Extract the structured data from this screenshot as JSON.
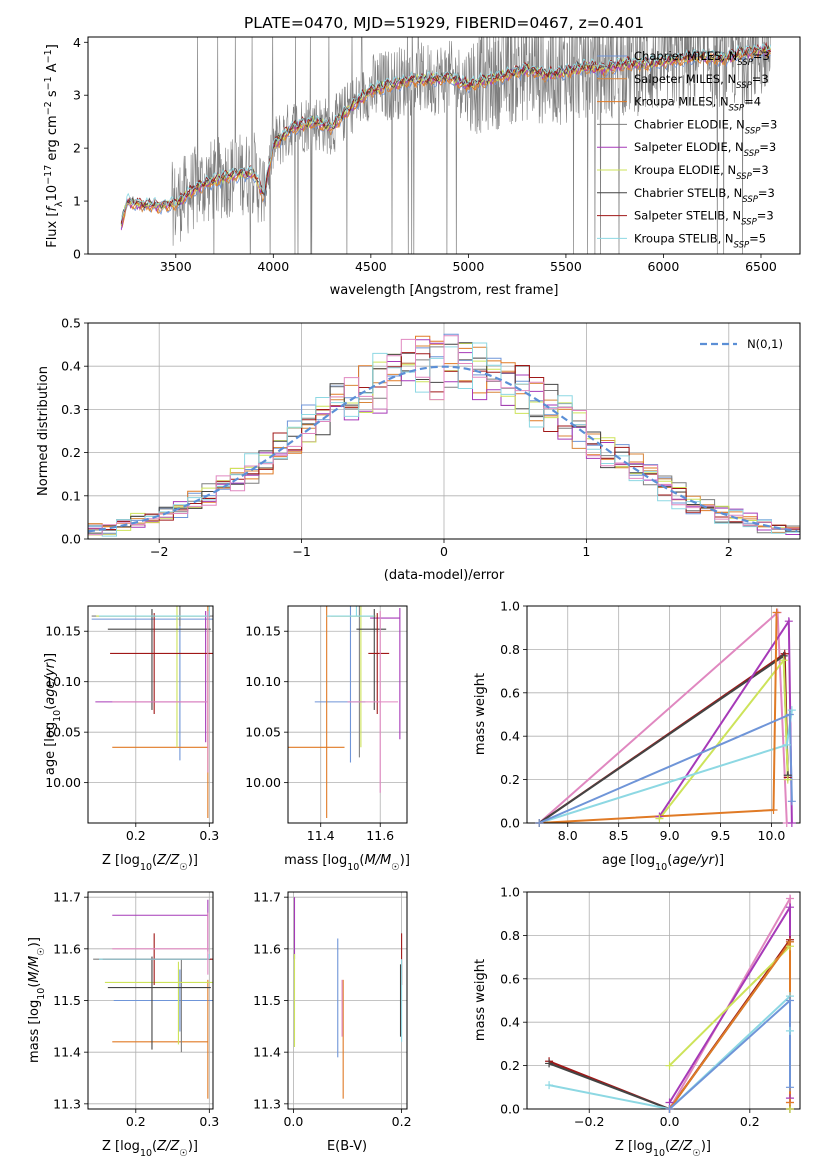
{
  "figure_title": "PLATE=0470, MJD=51929, FIBERID=0467, z=0.401",
  "colors": {
    "Chabrier MILES": "#6f95d8",
    "Salpeter MILES": "#d9863a",
    "Kroupa MILES": "#e07a25",
    "Chabrier ELODIE": "#7f7f7f",
    "Salpeter ELODIE": "#a63ab8",
    "Kroupa ELODIE": "#cde35a",
    "Chabrier STELIB": "#444444",
    "Salpeter STELIB": "#a01818",
    "Kroupa STELIB": "#8dd8e3",
    "normal": "#5b8fd6",
    "pink": "#e088c0"
  },
  "chart_data": [
    {
      "id": "spectrum",
      "type": "line",
      "title": "PLATE=0470, MJD=51929, FIBERID=0467, z=0.401",
      "xlabel": "wavelength [Angstrom, rest frame]",
      "ylabel": "Flux [f_λ 10^{-17} erg cm^{-2} s^{-1} A^{-1}]",
      "xlim": [
        3050,
        6700
      ],
      "ylim": [
        0,
        4.1
      ],
      "xticks": [
        3500,
        4000,
        4500,
        5000,
        5500,
        6000,
        6500
      ],
      "yticks": [
        0,
        1,
        2,
        3,
        4
      ],
      "grid": false,
      "legend_position": "upper-right",
      "model_continuum": {
        "x": [
          3220,
          3250,
          3300,
          3400,
          3500,
          3600,
          3700,
          3800,
          3900,
          3950,
          4000,
          4100,
          4200,
          4300,
          4400,
          4500,
          4600,
          4700,
          4800,
          4900,
          5000,
          5100,
          5200,
          5300,
          5400,
          5500,
          5600,
          5700,
          5800,
          5900,
          6000,
          6100,
          6200,
          6300,
          6400,
          6500,
          6550
        ],
        "y": [
          0.55,
          1.0,
          0.95,
          0.92,
          0.95,
          1.25,
          1.4,
          1.5,
          1.55,
          1.1,
          2.05,
          2.4,
          2.5,
          2.4,
          2.8,
          3.1,
          3.2,
          3.3,
          3.3,
          3.35,
          3.2,
          3.3,
          3.4,
          3.5,
          3.4,
          3.45,
          3.55,
          3.5,
          3.6,
          3.6,
          3.65,
          3.7,
          3.75,
          3.7,
          3.8,
          3.85,
          3.85
        ]
      },
      "series": [
        {
          "name": "Chabrier MILES, N_SSP=3",
          "label_main": "Chabrier MILES, N",
          "label_sub": "SSP",
          "label_end": "=3"
        },
        {
          "name": "Salpeter MILES, N_SSP=3",
          "label_main": "Salpeter MILES, N",
          "label_sub": "SSP",
          "label_end": "=3"
        },
        {
          "name": "Kroupa MILES, N_SSP=4",
          "label_main": "Kroupa MILES, N",
          "label_sub": "SSP",
          "label_end": "=4"
        },
        {
          "name": "Chabrier ELODIE, N_SSP=3",
          "label_main": "Chabrier ELODIE, N",
          "label_sub": "SSP",
          "label_end": "=3"
        },
        {
          "name": "Salpeter ELODIE, N_SSP=3",
          "label_main": "Salpeter ELODIE, N",
          "label_sub": "SSP",
          "label_end": "=3"
        },
        {
          "name": "Kroupa ELODIE, N_SSP=3",
          "label_main": "Kroupa ELODIE, N",
          "label_sub": "SSP",
          "label_end": "=3"
        },
        {
          "name": "Chabrier STELIB, N_SSP=3",
          "label_main": "Chabrier STELIB, N",
          "label_sub": "SSP",
          "label_end": "=3"
        },
        {
          "name": "Salpeter STELIB, N_SSP=3",
          "label_main": "Salpeter STELIB, N",
          "label_sub": "SSP",
          "label_end": "=3"
        },
        {
          "name": "Kroupa STELIB, N_SSP=5",
          "label_main": "Kroupa STELIB, N",
          "label_sub": "SSP",
          "label_end": "=5"
        }
      ]
    },
    {
      "id": "residuals",
      "type": "histogram",
      "xlabel": "(data-model)/error",
      "ylabel": "Normed distribution",
      "xlim": [
        -2.5,
        2.5
      ],
      "ylim": [
        0,
        0.5
      ],
      "xticks": [
        -2,
        -1,
        0,
        1,
        2
      ],
      "yticks": [
        0.0,
        0.1,
        0.2,
        0.3,
        0.4,
        0.5
      ],
      "grid": true,
      "legend_position": "upper-right",
      "legend_label": "N(0,1)",
      "bin_width": 0.1
    },
    {
      "id": "age_vs_Z",
      "type": "errorbar",
      "xlabel": "Z [log10(Z/Z☉)]",
      "ylabel": "age [log10(age/yr)]",
      "xlim": [
        0.135,
        0.305
      ],
      "ylim": [
        9.96,
        10.175
      ],
      "xticks": [
        0.2,
        0.3
      ],
      "yticks": [
        10.0,
        10.05,
        10.1,
        10.15
      ],
      "grid": true,
      "points": [
        {
          "model": "Chabrier MILES",
          "x": 0.26,
          "xerr": [
            0.12,
            0.05
          ],
          "y": 10.162,
          "yerr": [
            0.14,
            0.02
          ]
        },
        {
          "model": "Kroupa MILES",
          "x": 0.298,
          "xerr": [
            0.13,
            0.0
          ],
          "y": 10.035,
          "yerr": [
            0.07,
            0.14
          ]
        },
        {
          "model": "Chabrier ELODIE",
          "x": 0.26,
          "xerr": [
            0.12,
            0.05
          ],
          "y": 10.165,
          "yerr": [
            0.01,
            0.01
          ]
        },
        {
          "model": "Salpeter ELODIE",
          "x": 0.295,
          "xerr": [
            0.15,
            0.0
          ],
          "y": 10.08,
          "yerr": [
            0.04,
            0.09
          ]
        },
        {
          "model": "Kroupa ELODIE",
          "x": 0.256,
          "xerr": [
            0.11,
            0.04
          ],
          "y": 10.165,
          "yerr": [
            0.13,
            0.01
          ]
        },
        {
          "model": "Chabrier STELIB",
          "x": 0.222,
          "xerr": [
            0.06,
            0.08
          ],
          "y": 10.152,
          "yerr": [
            0.08,
            0.02
          ]
        },
        {
          "model": "Salpeter STELIB",
          "x": 0.225,
          "xerr": [
            0.06,
            0.08
          ],
          "y": 10.128,
          "yerr": [
            0.06,
            0.04
          ]
        },
        {
          "model": "Kroupa STELIB",
          "x": 0.3,
          "xerr": [
            0.15,
            0.0
          ],
          "y": 10.165,
          "yerr": [
            0.0,
            0.01
          ]
        },
        {
          "model": "pink",
          "x": 0.298,
          "xerr": [
            0.13,
            0.0
          ],
          "y": 10.08,
          "yerr": [
            0.07,
            0.09
          ]
        }
      ]
    },
    {
      "id": "age_vs_mass",
      "type": "errorbar",
      "xlabel": "mass [log10(M/M☉)]",
      "ylabel": "",
      "xlim": [
        11.29,
        11.69
      ],
      "ylim": [
        9.96,
        10.175
      ],
      "xticks": [
        11.4,
        11.6
      ],
      "yticks": [
        10.0,
        10.05,
        10.1,
        10.15
      ],
      "grid": true,
      "points": [
        {
          "model": "Chabrier MILES",
          "x": 11.5,
          "xerr": [
            0.12,
            0.05
          ],
          "y": 10.08,
          "yerr": [
            0.06,
            0.1
          ]
        },
        {
          "model": "Kroupa MILES",
          "x": 11.42,
          "xerr": [
            0.13,
            0.06
          ],
          "y": 10.035,
          "yerr": [
            0.07,
            0.14
          ]
        },
        {
          "model": "Chabrier ELODIE",
          "x": 11.53,
          "xerr": [
            0.11,
            0.05
          ],
          "y": 10.165,
          "yerr": [
            0.14,
            0.01
          ]
        },
        {
          "model": "Salpeter ELODIE",
          "x": 11.666,
          "xerr": [
            0.1,
            0.0
          ],
          "y": 10.163,
          "yerr": [
            0.12,
            0.01
          ]
        },
        {
          "model": "Kroupa ELODIE",
          "x": 11.535,
          "xerr": [
            0.1,
            0.05
          ],
          "y": 10.165,
          "yerr": [
            0.13,
            0.01
          ]
        },
        {
          "model": "Chabrier STELIB",
          "x": 11.58,
          "xerr": [
            0.06,
            0.04
          ],
          "y": 10.152,
          "yerr": [
            0.08,
            0.02
          ]
        },
        {
          "model": "Salpeter STELIB",
          "x": 11.59,
          "xerr": [
            0.03,
            0.04
          ],
          "y": 10.128,
          "yerr": [
            0.06,
            0.04
          ]
        },
        {
          "model": "Kroupa STELIB",
          "x": 11.52,
          "xerr": [
            0.1,
            0.06
          ],
          "y": 10.165,
          "yerr": [
            0.0,
            0.01
          ]
        },
        {
          "model": "pink",
          "x": 11.6,
          "xerr": [
            0.11,
            0.06
          ],
          "y": 10.08,
          "yerr": [
            0.09,
            0.09
          ]
        }
      ]
    },
    {
      "id": "weight_vs_age",
      "type": "line",
      "xlabel": "age [log10(age/yr)]",
      "ylabel": "mass weight",
      "xlim": [
        7.6,
        10.28
      ],
      "ylim": [
        0,
        1.0
      ],
      "xticks": [
        8.0,
        8.5,
        9.0,
        9.5,
        10.0
      ],
      "yticks": [
        0.0,
        0.2,
        0.4,
        0.6,
        0.8,
        1.0
      ],
      "grid": true,
      "series": [
        {
          "model": "pink",
          "x": [
            7.72,
            10.06,
            10.15
          ],
          "y": [
            0.0,
            0.97,
            0.0
          ]
        },
        {
          "model": "Salpeter STELIB",
          "x": [
            7.72,
            10.13,
            10.16
          ],
          "y": [
            0.0,
            0.78,
            0.21
          ]
        },
        {
          "model": "Chabrier STELIB",
          "x": [
            7.72,
            10.12,
            10.16
          ],
          "y": [
            0.0,
            0.77,
            0.22
          ]
        },
        {
          "model": "Salpeter ELODIE",
          "x": [
            8.9,
            10.17,
            10.2
          ],
          "y": [
            0.03,
            0.93,
            0.0
          ]
        },
        {
          "model": "Kroupa ELODIE",
          "x": [
            8.9,
            10.12,
            10.16
          ],
          "y": [
            0.02,
            0.75,
            0.2
          ]
        },
        {
          "model": "Kroupa STELIB",
          "x": [
            7.72,
            10.15,
            10.2
          ],
          "y": [
            0.0,
            0.36,
            0.52
          ]
        },
        {
          "model": "Kroupa MILES",
          "x": [
            7.72,
            10.02,
            10.05
          ],
          "y": [
            0.0,
            0.06,
            0.97
          ]
        },
        {
          "model": "Chabrier MILES",
          "x": [
            7.72,
            10.18,
            10.2
          ],
          "y": [
            0.0,
            0.5,
            0.1
          ]
        }
      ]
    },
    {
      "id": "mass_vs_Z",
      "type": "errorbar",
      "xlabel": "Z [log10(Z/Z☉)]",
      "ylabel": "mass [log10(M/M☉)]",
      "xlim": [
        0.135,
        0.305
      ],
      "ylim": [
        11.29,
        11.71
      ],
      "xticks": [
        0.2,
        0.3
      ],
      "yticks": [
        11.3,
        11.4,
        11.5,
        11.6,
        11.7
      ],
      "grid": true,
      "points": [
        {
          "model": "Chabrier MILES",
          "x": 0.26,
          "xerr": [
            0.09,
            0.05
          ],
          "y": 11.5,
          "yerr": [
            0.06,
            0.06
          ]
        },
        {
          "model": "Kroupa MILES",
          "x": 0.298,
          "xerr": [
            0.13,
            0.0
          ],
          "y": 11.42,
          "yerr": [
            0.11,
            0.12
          ]
        },
        {
          "model": "Chabrier ELODIE",
          "x": 0.262,
          "xerr": [
            0.12,
            0.04
          ],
          "y": 11.58,
          "yerr": [
            0.18,
            0.0
          ]
        },
        {
          "model": "Salpeter ELODIE",
          "x": 0.298,
          "xerr": [
            0.13,
            0.0
          ],
          "y": 11.665,
          "yerr": [
            0.07,
            0.03
          ]
        },
        {
          "model": "Kroupa ELODIE",
          "x": 0.258,
          "xerr": [
            0.1,
            0.05
          ],
          "y": 11.535,
          "yerr": [
            0.12,
            0.04
          ]
        },
        {
          "model": "Chabrier STELIB",
          "x": 0.222,
          "xerr": [
            0.06,
            0.08
          ],
          "y": 11.525,
          "yerr": [
            0.12,
            0.06
          ]
        },
        {
          "model": "Salpeter STELIB",
          "x": 0.225,
          "xerr": [
            0.07,
            0.08
          ],
          "y": 11.58,
          "yerr": [
            0.05,
            0.05
          ]
        },
        {
          "model": "Kroupa STELIB",
          "x": 0.3,
          "xerr": [
            0.15,
            0.0
          ],
          "y": 11.58,
          "yerr": [
            0.0,
            0.01
          ]
        },
        {
          "model": "pink",
          "x": 0.298,
          "xerr": [
            0.13,
            0.0
          ],
          "y": 11.6,
          "yerr": [
            0.05,
            0.07
          ]
        }
      ]
    },
    {
      "id": "mass_vs_ebv",
      "type": "errorbar",
      "xlabel": "E(B-V)",
      "ylabel": "",
      "xlim": [
        -0.01,
        0.21
      ],
      "ylim": [
        11.29,
        11.71
      ],
      "xticks": [
        0.0,
        0.2
      ],
      "yticks": [
        11.3,
        11.4,
        11.5,
        11.6,
        11.7
      ],
      "grid": true,
      "points": [
        {
          "model": "Chabrier MILES",
          "x": 0.082,
          "xerr": [
            0.0,
            0.0
          ],
          "y": 11.5,
          "yerr": [
            0.11,
            0.12
          ]
        },
        {
          "model": "Kroupa MILES",
          "x": 0.092,
          "xerr": [
            0.0,
            0.0
          ],
          "y": 11.42,
          "yerr": [
            0.11,
            0.12
          ]
        },
        {
          "model": "Chabrier ELODIE",
          "x": 0.002,
          "xerr": [
            0.0,
            0.0
          ],
          "y": 11.58,
          "yerr": [
            0.0,
            0.01
          ]
        },
        {
          "model": "Salpeter ELODIE",
          "x": 0.002,
          "xerr": [
            0.0,
            0.0
          ],
          "y": 11.62,
          "yerr": [
            0.04,
            0.08
          ]
        },
        {
          "model": "Kroupa ELODIE",
          "x": 0.002,
          "xerr": [
            0.0,
            0.0
          ],
          "y": 11.53,
          "yerr": [
            0.12,
            0.06
          ]
        },
        {
          "model": "Chabrier STELIB",
          "x": 0.198,
          "xerr": [
            0.0,
            0.0
          ],
          "y": 11.5,
          "yerr": [
            0.07,
            0.07
          ]
        },
        {
          "model": "Salpeter STELIB",
          "x": 0.2,
          "xerr": [
            0.0,
            0.0
          ],
          "y": 11.58,
          "yerr": [
            0.05,
            0.05
          ]
        },
        {
          "model": "Kroupa STELIB",
          "x": 0.2,
          "xerr": [
            0.0,
            0.0
          ],
          "y": 11.5,
          "yerr": [
            0.08,
            0.08
          ]
        },
        {
          "model": "pink",
          "x": 0.09,
          "xerr": [
            0.0,
            0.0
          ],
          "y": 11.49,
          "yerr": [
            0.06,
            0.05
          ]
        }
      ]
    },
    {
      "id": "weight_vs_Z",
      "type": "line",
      "xlabel": "Z [log10(Z/Z☉)]",
      "ylabel": "mass weight",
      "xlim": [
        -0.355,
        0.325
      ],
      "ylim": [
        0,
        1.0
      ],
      "xticks": [
        -0.2,
        0.0,
        0.2
      ],
      "yticks": [
        0.0,
        0.2,
        0.4,
        0.6,
        0.8,
        1.0
      ],
      "grid": true,
      "series": [
        {
          "model": "Salpeter STELIB",
          "x": [
            -0.3,
            0.0,
            0.3,
            0.3
          ],
          "y": [
            0.22,
            0.0,
            0.78,
            0.0
          ]
        },
        {
          "model": "Chabrier STELIB",
          "x": [
            -0.3,
            0.0,
            0.3,
            0.3
          ],
          "y": [
            0.21,
            0.0,
            0.77,
            0.0
          ]
        },
        {
          "model": "Kroupa STELIB",
          "x": [
            -0.3,
            0.0,
            0.3,
            0.3
          ],
          "y": [
            0.11,
            0.0,
            0.52,
            0.36
          ]
        },
        {
          "model": "pink",
          "x": [
            0.0,
            0.3,
            0.3
          ],
          "y": [
            0.0,
            0.97,
            0.03
          ]
        },
        {
          "model": "Salpeter ELODIE",
          "x": [
            0.0,
            0.3,
            0.3
          ],
          "y": [
            0.03,
            0.93,
            0.05
          ]
        },
        {
          "model": "Kroupa ELODIE",
          "x": [
            0.0,
            0.3,
            0.3
          ],
          "y": [
            0.2,
            0.75,
            0.0
          ]
        },
        {
          "model": "Kroupa MILES",
          "x": [
            0.0,
            0.3,
            0.3
          ],
          "y": [
            0.0,
            0.77,
            0.03
          ]
        },
        {
          "model": "Chabrier MILES",
          "x": [
            0.0,
            0.3,
            0.3
          ],
          "y": [
            0.0,
            0.5,
            0.1
          ]
        }
      ]
    }
  ]
}
